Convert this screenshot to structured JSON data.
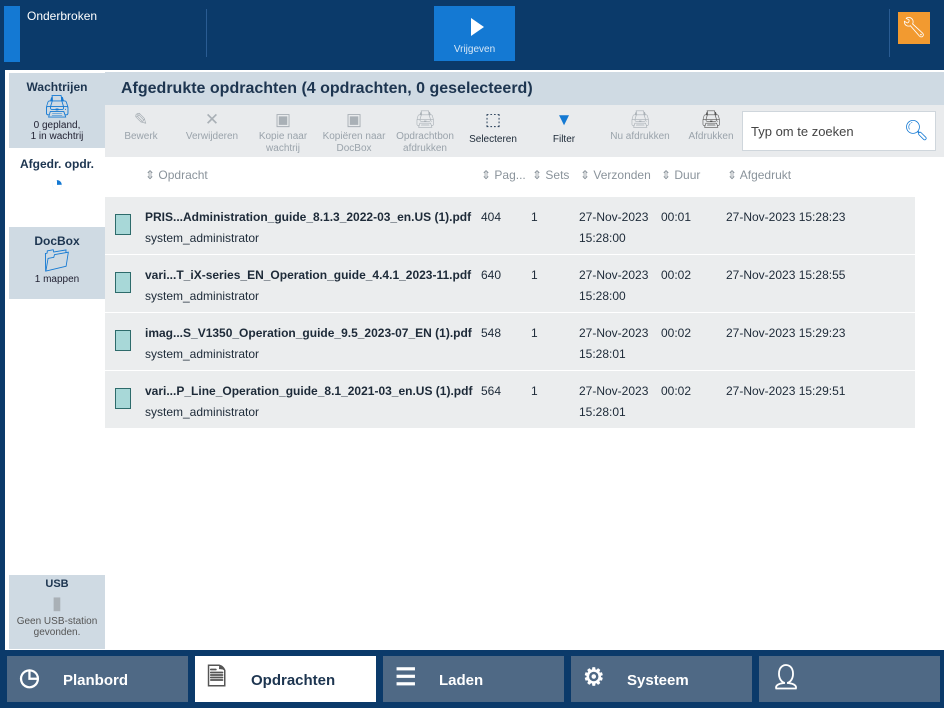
{
  "topbar": {
    "status": "Onderbroken",
    "release_label": "Vrijgeven",
    "accent": "#1479d3",
    "service_color": "#f29a30"
  },
  "sidebar": {
    "items": [
      {
        "title": "Wachtrijen",
        "sub1": "0 gepland,",
        "sub2": "1 in wachtrij",
        "icon": "printer-icon"
      },
      {
        "title": "Afgedr. opdr.",
        "icon": "history-icon"
      },
      {
        "title": "DocBox",
        "sub1": "1 mappen",
        "icon": "folder-icon"
      },
      {
        "title": "USB",
        "sub1": "Geen USB-station",
        "sub2": "gevonden.",
        "icon": "usb-icon"
      }
    ]
  },
  "main": {
    "title": "Afgedrukte opdrachten (4 opdrachten, 0 geselecteerd)",
    "toolbar": [
      {
        "l1": "Bewerk",
        "l2": "",
        "icon": "pencil-icon"
      },
      {
        "l1": "Verwijderen",
        "l2": "",
        "icon": "x-icon"
      },
      {
        "l1": "Kopie naar",
        "l2": "wachtrij",
        "icon": "copy-icon"
      },
      {
        "l1": "Kopiëren naar",
        "l2": "DocBox",
        "icon": "copy-docbox-icon"
      },
      {
        "l1": "Opdrachtbon",
        "l2": "afdrukken",
        "icon": "ticket-print-icon"
      },
      {
        "l1": "Selecteren",
        "l2": "",
        "icon": "select-icon"
      },
      {
        "l1": "Filter",
        "l2": "",
        "icon": "filter-icon"
      },
      {
        "l1": "Nu afdrukken",
        "l2": "",
        "icon": "print-now-icon"
      },
      {
        "l1": "Afdrukken",
        "l2": "",
        "icon": "printer-icon"
      }
    ],
    "search_placeholder": "Typ om te zoeken",
    "columns": [
      "Opdracht",
      "Pag...",
      "Sets",
      "Verzonden",
      "Duur",
      "Afgedrukt"
    ],
    "rows": [
      {
        "name": "PRIS...Administration_guide_8.1.3_2022-03_en.US (1).pdf",
        "user": "system_administrator",
        "pages": "404",
        "sets": "1",
        "sent_date": "27-Nov-2023",
        "sent_time": "15:28:00",
        "duration": "00:01",
        "printed": "27-Nov-2023 15:28:23"
      },
      {
        "name": "vari...T_iX-series_EN_Operation_guide_4.4.1_2023-11.pdf",
        "user": "system_administrator",
        "pages": "640",
        "sets": "1",
        "sent_date": "27-Nov-2023",
        "sent_time": "15:28:00",
        "duration": "00:02",
        "printed": "27-Nov-2023 15:28:55"
      },
      {
        "name": "imag...S_V1350_Operation_guide_9.5_2023-07_EN (1).pdf",
        "user": "system_administrator",
        "pages": "548",
        "sets": "1",
        "sent_date": "27-Nov-2023",
        "sent_time": "15:28:01",
        "duration": "00:02",
        "printed": "27-Nov-2023 15:29:23"
      },
      {
        "name": "vari...P_Line_Operation_guide_8.1_2021-03_en.US (1).pdf",
        "user": "system_administrator",
        "pages": "564",
        "sets": "1",
        "sent_date": "27-Nov-2023",
        "sent_time": "15:28:01",
        "duration": "00:02",
        "printed": "27-Nov-2023 15:29:51"
      }
    ]
  },
  "bottomnav": [
    {
      "label": "Planbord",
      "icon": "clock-icon"
    },
    {
      "label": "Opdrachten",
      "icon": "document-icon",
      "active": true
    },
    {
      "label": "Laden",
      "icon": "tray-icon"
    },
    {
      "label": "Systeem",
      "icon": "gear-icon"
    },
    {
      "label": "",
      "icon": "user-key-icon"
    }
  ]
}
